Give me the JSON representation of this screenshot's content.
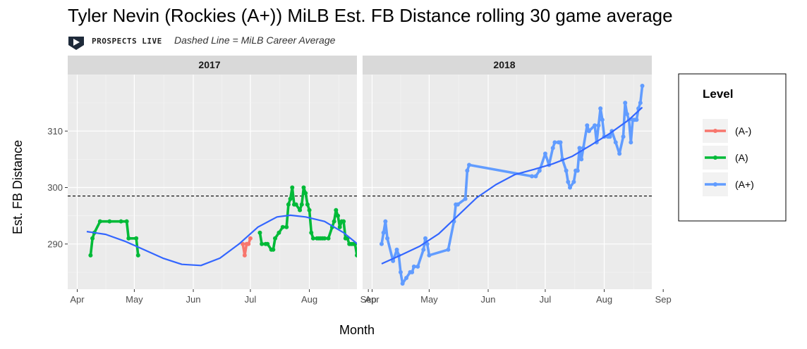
{
  "chart_data": {
    "type": "line",
    "title": "Tyler Nevin (Rockies (A+)) MiLB Est. FB Distance rolling 30 game average",
    "subtitle": "Dashed Line = MiLB Career Average",
    "brand": "PROSPECTS LIVE",
    "xlabel": "Month",
    "ylabel": "Est. FB Distance",
    "ylim": [
      282,
      320
    ],
    "yticks": [
      290,
      300,
      310
    ],
    "career_average": 298.5,
    "legend": {
      "title": "Level",
      "entries": [
        {
          "label": "(A-)",
          "color": "#F8766D"
        },
        {
          "label": "(A)",
          "color": "#00BA38"
        },
        {
          "label": "(A+)",
          "color": "#619CFF"
        }
      ]
    },
    "smooth_color": "#3366FF",
    "panels": [
      {
        "label": "2017",
        "xlim": [
          -5,
          147
        ],
        "xticks": [
          {
            "day": 0,
            "label": "Apr"
          },
          {
            "day": 30,
            "label": "May"
          },
          {
            "day": 61,
            "label": "Jun"
          },
          {
            "day": 91,
            "label": "Jul"
          },
          {
            "day": 122,
            "label": "Aug"
          },
          {
            "day": 153,
            "label": "Sep"
          }
        ],
        "series": [
          {
            "name": "(A)",
            "color": "#00BA38",
            "segments": [
              [
                [
                  7,
                  288
                ],
                [
                  8,
                  291
                ],
                [
                  9,
                  292
                ],
                [
                  12,
                  294
                ],
                [
                  17,
                  294
                ],
                [
                  23,
                  294
                ],
                [
                  26,
                  294
                ],
                [
                  27,
                  291
                ],
                [
                  31,
                  291
                ],
                [
                  32,
                  288
                ]
              ],
              [
                [
                  96,
                  292
                ],
                [
                  97,
                  290
                ],
                [
                  99,
                  290
                ],
                [
                  100,
                  290
                ],
                [
                  102,
                  289
                ],
                [
                  103,
                  289
                ],
                [
                  104,
                  291
                ],
                [
                  106,
                  292
                ],
                [
                  108,
                  293
                ],
                [
                  110,
                  293
                ],
                [
                  111,
                  297
                ],
                [
                  112,
                  298
                ],
                [
                  113,
                  300
                ],
                [
                  114,
                  297
                ],
                [
                  115,
                  297
                ],
                [
                  117,
                  296
                ],
                [
                  118,
                  297
                ],
                [
                  119,
                  300
                ],
                [
                  120,
                  299
                ],
                [
                  121,
                  297
                ],
                [
                  122,
                  296
                ],
                [
                  123,
                  292
                ],
                [
                  124,
                  291
                ],
                [
                  126,
                  291
                ],
                [
                  127,
                  291
                ],
                [
                  128,
                  291
                ],
                [
                  129,
                  291
                ],
                [
                  130,
                  291
                ],
                [
                  132,
                  291
                ],
                [
                  134,
                  293
                ],
                [
                  135,
                  294
                ],
                [
                  136,
                  296
                ],
                [
                  137,
                  295
                ],
                [
                  138,
                  293
                ],
                [
                  139,
                  294
                ],
                [
                  140,
                  294
                ],
                [
                  141,
                  291
                ],
                [
                  142,
                  291
                ],
                [
                  143,
                  290
                ],
                [
                  144,
                  290
                ],
                [
                  145,
                  290
                ],
                [
                  146,
                  290
                ],
                [
                  147,
                  288
                ]
              ]
            ]
          },
          {
            "name": "(A-)",
            "color": "#F8766D",
            "segments": [
              [
                [
                  87,
                  290
                ],
                [
                  88,
                  288
                ],
                [
                  89,
                  290
                ],
                [
                  90,
                  290
                ],
                [
                  91,
                  291
                ]
              ]
            ]
          }
        ],
        "smooth": [
          [
            5,
            292.2
          ],
          [
            15,
            291.7
          ],
          [
            25,
            290.5
          ],
          [
            35,
            289
          ],
          [
            45,
            287.5
          ],
          [
            55,
            286.4
          ],
          [
            65,
            286.2
          ],
          [
            75,
            287.5
          ],
          [
            85,
            290
          ],
          [
            95,
            293
          ],
          [
            105,
            294.8
          ],
          [
            112,
            295.1
          ],
          [
            120,
            294.8
          ],
          [
            130,
            294
          ],
          [
            140,
            292
          ],
          [
            148,
            289.8
          ]
        ]
      },
      {
        "label": "2018",
        "xlim": [
          -5,
          147
        ],
        "xticks": [
          {
            "day": 0,
            "label": "Apr"
          },
          {
            "day": 30,
            "label": "May"
          },
          {
            "day": 61,
            "label": "Jun"
          },
          {
            "day": 91,
            "label": "Jul"
          },
          {
            "day": 122,
            "label": "Aug"
          },
          {
            "day": 153,
            "label": "Sep"
          }
        ],
        "series": [
          {
            "name": "(A+)",
            "color": "#619CFF",
            "segments": [
              [
                [
                  5,
                  290
                ],
                [
                  6,
                  292
                ],
                [
                  7,
                  294
                ],
                [
                  8,
                  291
                ],
                [
                  11,
                  287
                ],
                [
                  13,
                  289
                ],
                [
                  14,
                  288
                ],
                [
                  15,
                  285
                ],
                [
                  16,
                  283
                ],
                [
                  18,
                  284
                ],
                [
                  20,
                  285
                ],
                [
                  21,
                  285
                ],
                [
                  22,
                  286
                ],
                [
                  24,
                  286
                ],
                [
                  27,
                  289
                ],
                [
                  28,
                  291
                ],
                [
                  29,
                  290
                ],
                [
                  30,
                  288
                ],
                [
                  40,
                  289
                ],
                [
                  43,
                  294
                ],
                [
                  44,
                  297
                ],
                [
                  45,
                  297
                ],
                [
                  49,
                  298
                ],
                [
                  50,
                  303
                ],
                [
                  51,
                  304
                ],
                [
                  84,
                  302
                ],
                [
                  86,
                  302
                ],
                [
                  88,
                  303
                ],
                [
                  91,
                  306
                ],
                [
                  93,
                  304
                ],
                [
                  95,
                  307
                ],
                [
                  96,
                  308
                ],
                [
                  98,
                  308
                ],
                [
                  99,
                  308
                ],
                [
                  100,
                  305
                ],
                [
                  102,
                  303
                ],
                [
                  103,
                  301
                ],
                [
                  104,
                  300
                ],
                [
                  106,
                  301
                ],
                [
                  107,
                  303
                ],
                [
                  108,
                  303
                ],
                [
                  109,
                  307
                ],
                [
                  110,
                  305
                ],
                [
                  111,
                  307
                ],
                [
                  113,
                  311
                ],
                [
                  114,
                  310
                ],
                [
                  117,
                  311
                ],
                [
                  118,
                  308
                ],
                [
                  119,
                  311
                ],
                [
                  120,
                  314
                ],
                [
                  121,
                  312
                ],
                [
                  122,
                  309
                ],
                [
                  124,
                  309
                ],
                [
                  125,
                  309
                ],
                [
                  126,
                  310
                ],
                [
                  128,
                  308
                ],
                [
                  130,
                  306
                ],
                [
                  132,
                  309
                ],
                [
                  133,
                  315
                ],
                [
                  134,
                  313
                ],
                [
                  135,
                  312
                ],
                [
                  136,
                  308
                ],
                [
                  137,
                  312
                ],
                [
                  138,
                  312
                ],
                [
                  139,
                  312
                ],
                [
                  140,
                  314
                ],
                [
                  141,
                  315
                ],
                [
                  142,
                  318
                ]
              ]
            ]
          }
        ],
        "smooth": [
          [
            5,
            286.5
          ],
          [
            15,
            288
          ],
          [
            25,
            289.6
          ],
          [
            35,
            291.8
          ],
          [
            45,
            295
          ],
          [
            55,
            298.2
          ],
          [
            65,
            300.5
          ],
          [
            75,
            302.3
          ],
          [
            85,
            303.2
          ],
          [
            95,
            304.2
          ],
          [
            105,
            305.5
          ],
          [
            115,
            307.5
          ],
          [
            125,
            309.6
          ],
          [
            135,
            312
          ],
          [
            142,
            314.2
          ]
        ]
      }
    ]
  }
}
